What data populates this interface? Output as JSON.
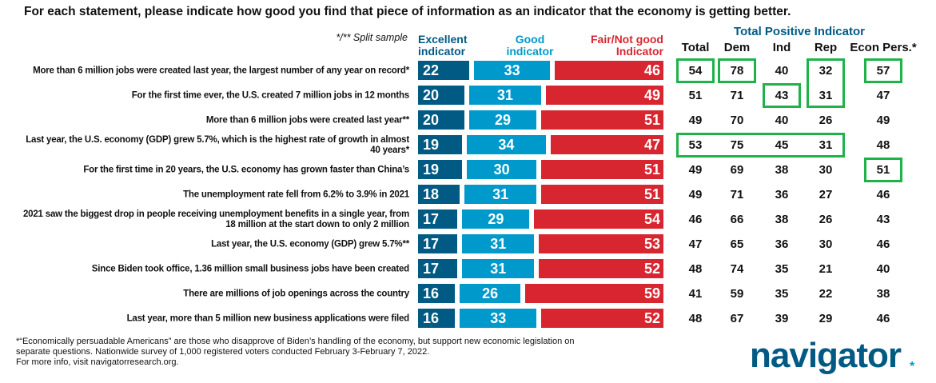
{
  "title": "For each statement, please indicate how good you find that piece of information as an indicator that the economy is getting better.",
  "split_note": "*/** Split sample",
  "colors": {
    "excellent": "#005a84",
    "good": "#0099cc",
    "fair": "#d7262f",
    "highlight": "#1fb24a"
  },
  "chart_data": {
    "type": "bar",
    "stacked": true,
    "orientation": "horizontal",
    "legend": [
      "Excellent indicator",
      "Good indicator",
      "Fair/Not good Indicator"
    ],
    "categories": [
      "More than 6 million jobs were created last year, the largest number of any year on record*",
      "For the first time ever, the U.S. created 7 million jobs in 12 months",
      "More than 6 million jobs were created last year**",
      "Last year, the U.S. economy (GDP) grew 5.7%, which is the highest rate of growth in almost 40 years*",
      "For the first time in 20 years, the U.S. economy has grown faster than China’s",
      "The unemployment rate fell from 6.2% to 3.9% in 2021",
      "2021 saw the biggest drop in people receiving unemployment benefits in a single year, from 18 million at the start down to only 2 million",
      "Last year, the U.S. economy (GDP) grew 5.7%**",
      "Since Biden took office, 1.36 million small business jobs have been created",
      "There are millions of job openings across the country",
      "Last year, more than 5 million new business applications were filed"
    ],
    "series": [
      {
        "name": "Excellent indicator",
        "values": [
          22,
          20,
          20,
          19,
          19,
          18,
          17,
          17,
          17,
          16,
          16
        ]
      },
      {
        "name": "Good indicator",
        "values": [
          33,
          31,
          29,
          34,
          30,
          31,
          29,
          31,
          31,
          26,
          33
        ]
      },
      {
        "name": "Fair/Not good Indicator",
        "values": [
          46,
          49,
          51,
          47,
          51,
          51,
          54,
          53,
          52,
          59,
          52
        ]
      }
    ]
  },
  "table": {
    "title": "Total Positive Indicator",
    "columns": [
      "Total",
      "Dem",
      "Ind",
      "Rep",
      "Econ Pers.*"
    ],
    "rows": [
      [
        54,
        78,
        40,
        32,
        57
      ],
      [
        51,
        71,
        43,
        31,
        47
      ],
      [
        49,
        70,
        40,
        26,
        49
      ],
      [
        53,
        75,
        45,
        31,
        48
      ],
      [
        49,
        69,
        38,
        30,
        51
      ],
      [
        49,
        71,
        36,
        27,
        46
      ],
      [
        46,
        66,
        38,
        26,
        43
      ],
      [
        47,
        65,
        36,
        30,
        46
      ],
      [
        48,
        74,
        35,
        21,
        40
      ],
      [
        41,
        59,
        35,
        22,
        38
      ],
      [
        48,
        67,
        39,
        29,
        46
      ]
    ]
  },
  "footer": [
    "*“Economically persuadable Americans” are those who disapprove of Biden’s handling of the economy, but support new economic legislation on separate questions. Nationwide survey of 1,000 registered voters conducted February 3-February 7, 2022.",
    "For more info, visit navigatorresearch.org."
  ],
  "logo": "navigator",
  "logo_mark": "*"
}
